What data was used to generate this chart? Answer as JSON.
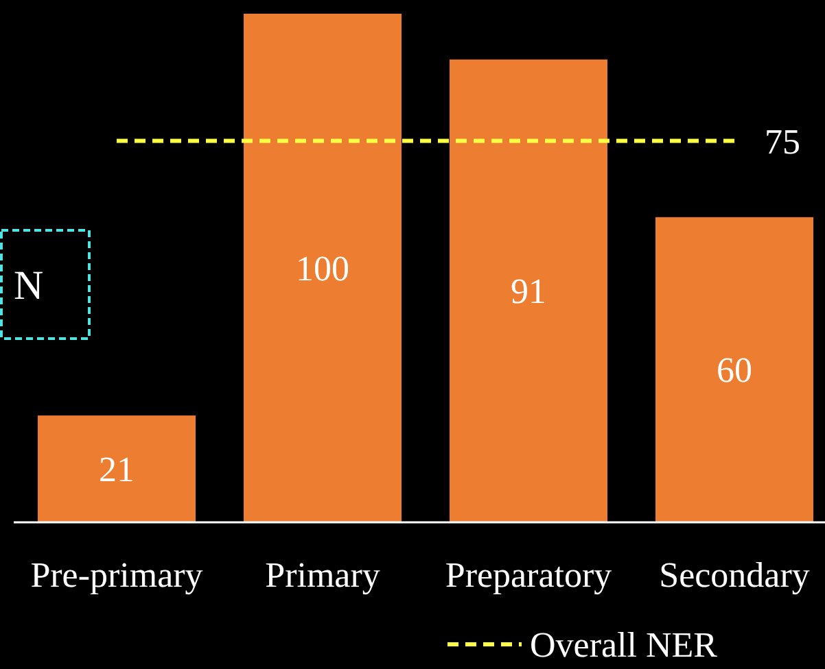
{
  "chart_data": {
    "type": "bar",
    "categories": [
      "Pre-primary",
      "Primary",
      "Preparatory",
      "Secondary"
    ],
    "ylim": [
      0,
      100
    ],
    "legend": "bottom",
    "annotations": [
      "N"
    ],
    "series": [
      {
        "color": "#ed7d31",
        "values": [
          21,
          100,
          91,
          60
        ],
        "value_labels": [
          "21",
          "100",
          "91",
          "60"
        ]
      },
      {
        "type": "line",
        "name": "Overall NER",
        "color": "#ffff44",
        "line_style": "dashed",
        "values": [
          75,
          75,
          75,
          75
        ],
        "value_labels": [
          null,
          null,
          null,
          "75"
        ]
      }
    ]
  }
}
